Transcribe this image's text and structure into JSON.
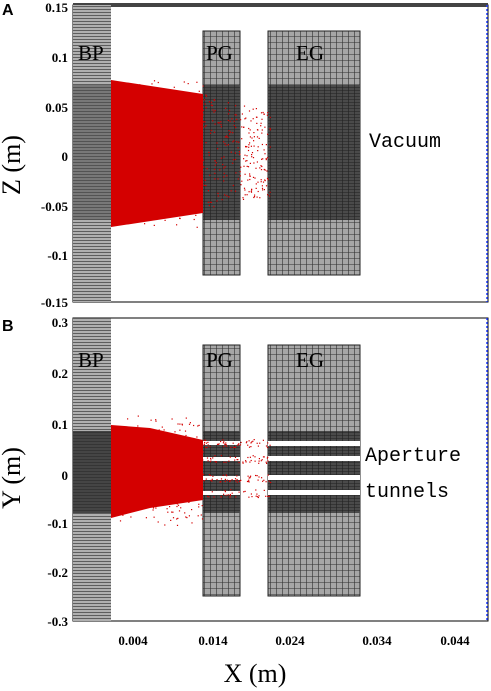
{
  "panels": [
    {
      "letter": "A",
      "axis_title": "Z (m)",
      "y_ticks": [
        "0.15",
        "0.1",
        "0.05",
        "0",
        "-0.05",
        "-0.1",
        "-0.15"
      ],
      "electrodes": [
        "BP",
        "PG",
        "EG"
      ],
      "annotation_lines": [
        "Vacuum"
      ]
    },
    {
      "letter": "B",
      "axis_title": "Y (m)",
      "y_ticks": [
        "0.3",
        "0.2",
        "0.1",
        "0",
        "-0.1",
        "-0.2",
        "-0.3"
      ],
      "electrodes": [
        "BP",
        "PG",
        "EG"
      ],
      "annotation_lines": [
        "Aperture",
        "tunnels"
      ]
    }
  ],
  "x_axis": {
    "title": "X (m)",
    "ticks": [
      "0.004",
      "0.014",
      "0.024",
      "0.034",
      "0.044"
    ]
  },
  "colors": {
    "particles": "#d40000",
    "electrode_fill": "#a8a8a8",
    "electrode_dense": "#3a3a3a",
    "mesh_line": "#2a2a2a",
    "boundary": "#1e3cff"
  }
}
